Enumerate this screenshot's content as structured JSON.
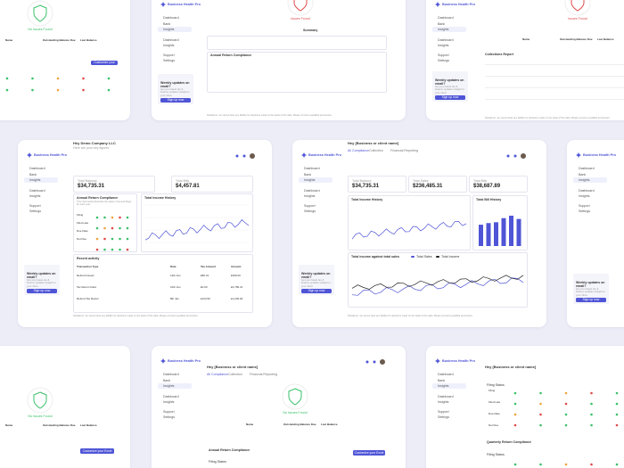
{
  "brand": "Business Health Pro",
  "nav": [
    "Dashboard",
    "Bank",
    "Insights",
    "Dashboard",
    "Insights",
    "Support",
    "Settings"
  ],
  "promo": {
    "title": "Weekly updates on email?",
    "text": "Get your latest tax & finance updates straight to your inbox",
    "button": "Sign up now"
  },
  "disclaimer": "Disclaimer: we cannot bear any liability for decisions made on the basis of this data. Please consult a qualified accountant.",
  "card_a": {
    "greeting": "Hey Demo Company LLC",
    "subtitle": "Here are your key figures",
    "balance_label": "Total Balance",
    "balance": "$34,735.31",
    "bills_label": "Total Bills",
    "bills": "$4,457.81",
    "compliance_title": "Annual Return Compliance",
    "compliance_text": "This chart below illustrates the status of annual filings for each year.",
    "filing_rows": [
      "Filing",
      "Filed Late",
      "Due Date",
      "Not Due"
    ],
    "chart_title": "Total Income History",
    "activity_title": "Recent activity",
    "table_headers": [
      "Transaction Type",
      "Date",
      "Tax Amount",
      "Amount"
    ],
    "rows": [
      [
        "Refund Issued",
        "12th Jan",
        "£80.41",
        "£290.00"
      ],
      [
        "Tax Return Filed",
        "10th Jan",
        "£0.00",
        "£3,780.21"
      ],
      [
        "Refund Tax Return",
        "8th Jan",
        "£124.50",
        "£1,240.00"
      ]
    ]
  },
  "card_b": {
    "greeting": "Hey [Business or client name]",
    "tabs": [
      "All Compliance",
      "Collection",
      "Financial Reporting"
    ],
    "stats": [
      {
        "label": "Total Balance",
        "value": "$34,735.31"
      },
      {
        "label": "Total Sales",
        "value": "$236,485.31"
      },
      {
        "label": "Total Bills",
        "value": "$38,687.89"
      }
    ],
    "chart1": "Total Income History",
    "chart2": "Total Bill History",
    "chart3": "Total income against total sales",
    "legend": [
      "Total Sales",
      "Total Income"
    ],
    "bar_chart": {
      "values": [
        52,
        56,
        58,
        68,
        74,
        66
      ],
      "ylim": [
        0,
        100
      ],
      "color": "#4f55d6"
    }
  },
  "other": {
    "no_issues": "No Issues Found",
    "issues_found": "Issues Found",
    "excel_button": "Customize your Excel",
    "summary": "Summary",
    "collections": "Collections Report",
    "filing_status": "Filing Status",
    "quarterly": "Quarterly Return Compliance",
    "table_headers": [
      "Name",
      "Outstanding Balance Due",
      "Last Balance"
    ]
  }
}
